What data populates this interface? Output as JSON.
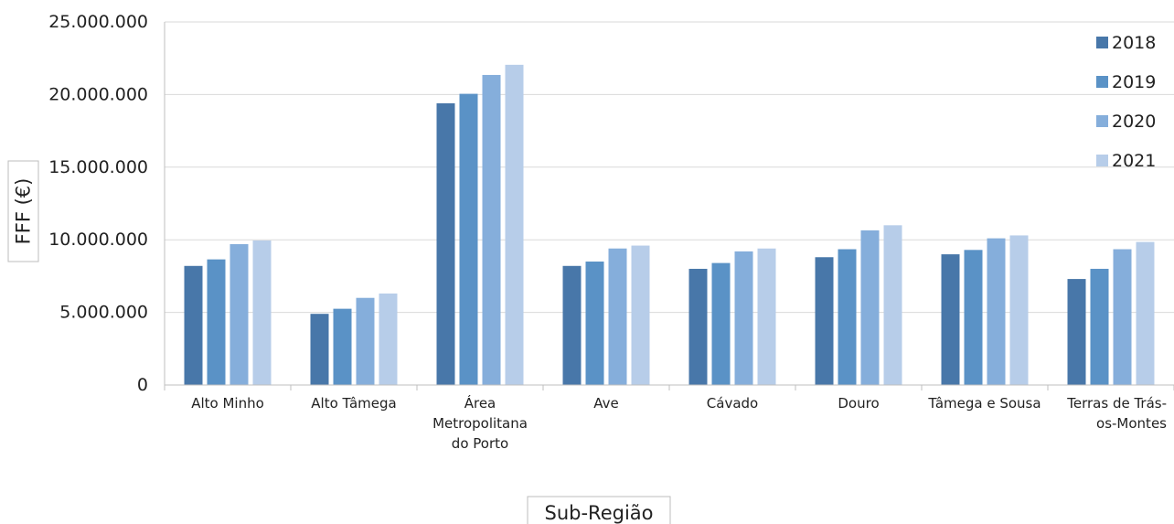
{
  "chart_data": {
    "type": "bar",
    "categories": [
      [
        "Alto Minho"
      ],
      [
        "Alto Tâmega"
      ],
      [
        "Área",
        "Metropolitana",
        "do Porto"
      ],
      [
        "Ave"
      ],
      [
        "Cávado"
      ],
      [
        "Douro"
      ],
      [
        "Tâmega e Sousa"
      ],
      [
        "Terras de Trás-",
        "os-Montes"
      ]
    ],
    "series": [
      {
        "name": "2018",
        "color": "#4877a9",
        "values": [
          8200000,
          4900000,
          19400000,
          8200000,
          8000000,
          8800000,
          9000000,
          7300000
        ]
      },
      {
        "name": "2019",
        "color": "#5a92c6",
        "values": [
          8650000,
          5250000,
          20050000,
          8500000,
          8400000,
          9350000,
          9300000,
          8000000
        ]
      },
      {
        "name": "2020",
        "color": "#85aedb",
        "values": [
          9700000,
          6000000,
          21350000,
          9400000,
          9200000,
          10650000,
          10100000,
          9350000
        ]
      },
      {
        "name": "2021",
        "color": "#b7cde9",
        "values": [
          9950000,
          6300000,
          22050000,
          9600000,
          9400000,
          11000000,
          10300000,
          9850000
        ]
      }
    ],
    "y_ticks": [
      "0",
      "5.000.000",
      "10.000.000",
      "15.000.000",
      "20.000.000",
      "25.000.000"
    ],
    "ylim": [
      0,
      25000000
    ],
    "ylabel": "FFF  (€)",
    "xlabel": "Sub-Região",
    "grid": true,
    "legend_position": "top-right"
  }
}
